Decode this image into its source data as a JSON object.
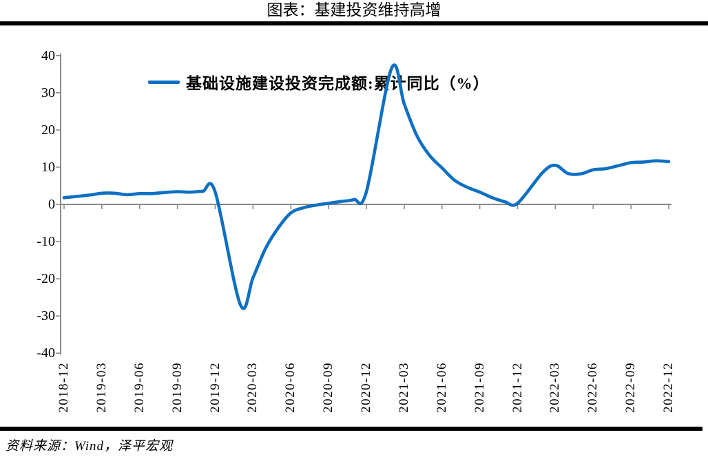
{
  "title": "图表：基建投资维持高增",
  "legend": {
    "label": "基础设施建设投资完成额:累计同比（%）"
  },
  "source_note": "资料来源：Wind，泽平宏观",
  "colors": {
    "line": "#0f70c2",
    "axis": "#8a8a8a",
    "rule": "#000000",
    "text": "#000000"
  },
  "chart_data": {
    "type": "line",
    "title": "图表：基建投资维持高增",
    "series_name": "基础设施建设投资完成额:累计同比（%）",
    "legend_position": "top",
    "grid": "off",
    "baseline": 0,
    "ylim": [
      -40,
      40
    ],
    "yticks": [
      40,
      30,
      20,
      10,
      0,
      -10,
      -20,
      -30,
      -40
    ],
    "xtick_labels": [
      "2018-12",
      "2019-03",
      "2019-06",
      "2019-09",
      "2019-12",
      "2020-03",
      "2020-06",
      "2020-09",
      "2020-12",
      "2021-03",
      "2021-06",
      "2021-09",
      "2021-12",
      "2022-03",
      "2022-06",
      "2022-09",
      "2022-12"
    ],
    "x": [
      "2018-12",
      "2019-02",
      "2019-03",
      "2019-04",
      "2019-05",
      "2019-06",
      "2019-07",
      "2019-08",
      "2019-09",
      "2019-10",
      "2019-11",
      "2019-12",
      "2020-02",
      "2020-03",
      "2020-04",
      "2020-05",
      "2020-06",
      "2020-07",
      "2020-08",
      "2020-09",
      "2020-10",
      "2020-11",
      "2020-12",
      "2021-02",
      "2021-03",
      "2021-04",
      "2021-05",
      "2021-06",
      "2021-07",
      "2021-08",
      "2021-09",
      "2021-10",
      "2021-11",
      "2021-12",
      "2022-02",
      "2022-03",
      "2022-04",
      "2022-05",
      "2022-06",
      "2022-07",
      "2022-08",
      "2022-09",
      "2022-10",
      "2022-11",
      "2022-12"
    ],
    "values": [
      1.8,
      2.5,
      3.0,
      3.0,
      2.6,
      2.9,
      2.9,
      3.2,
      3.4,
      3.3,
      3.5,
      3.3,
      -27.0,
      -19.7,
      -11.8,
      -6.3,
      -2.3,
      -0.9,
      -0.2,
      0.3,
      0.8,
      1.3,
      3.4,
      36.6,
      27.0,
      18.5,
      13.2,
      9.8,
      6.5,
      4.6,
      3.3,
      1.8,
      0.7,
      0.3,
      8.6,
      10.5,
      8.3,
      8.2,
      9.3,
      9.6,
      10.4,
      11.2,
      11.4,
      11.7,
      11.5
    ]
  }
}
